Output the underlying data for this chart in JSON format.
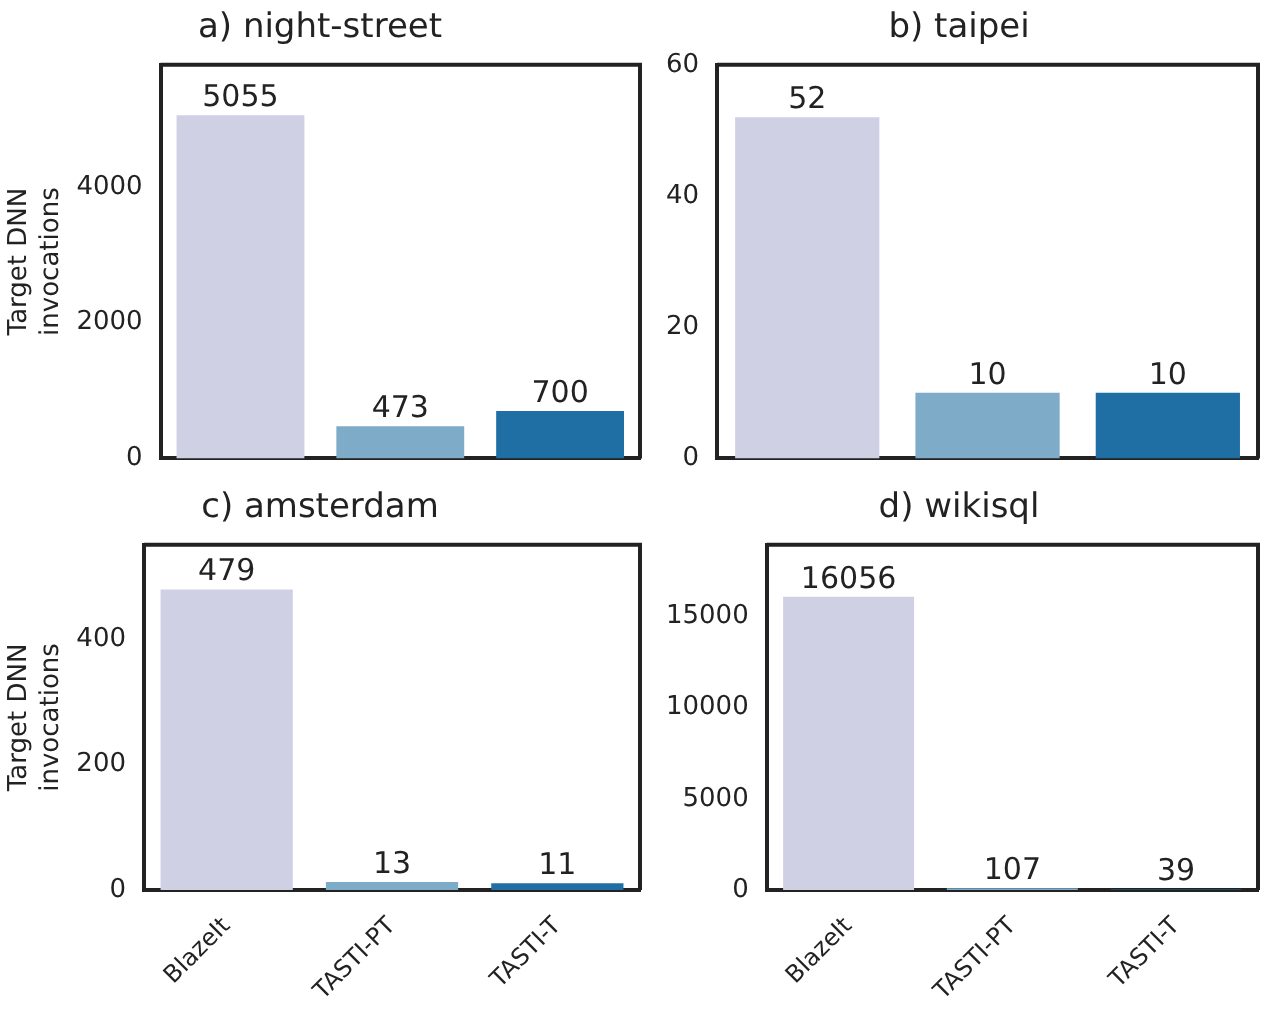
{
  "chart_data": [
    {
      "type": "bar",
      "title": "a) night-street",
      "ylabel": "Target DNN invocations",
      "categories": [
        null,
        null,
        null
      ],
      "values": [
        5055,
        473,
        700
      ],
      "colors": [
        "#cfd0e4",
        "#7eabc8",
        "#1f6fa5"
      ],
      "ylim": [
        0,
        5800
      ],
      "yticks": [
        0,
        2000,
        4000
      ],
      "data_labels": true,
      "grid": false,
      "legend": false,
      "tick_labels": "y"
    },
    {
      "type": "bar",
      "title": "b) taipei",
      "categories": [
        null,
        null,
        null
      ],
      "values": [
        52,
        10,
        10
      ],
      "colors": [
        "#cfd0e4",
        "#7eabc8",
        "#1f6fa5"
      ],
      "ylim": [
        0,
        60
      ],
      "yticks": [
        0,
        20,
        40,
        60
      ],
      "data_labels": true,
      "grid": false,
      "legend": false,
      "tick_labels": "y"
    },
    {
      "type": "bar",
      "title": "c) amsterdam",
      "ylabel": "Target DNN invocations",
      "categories": [
        "BlazeIt",
        "TASTI-PT",
        "TASTI-T"
      ],
      "values": [
        479,
        13,
        11
      ],
      "colors": [
        "#cfd0e4",
        "#7eabc8",
        "#1f6fa5"
      ],
      "ylim": [
        0,
        550
      ],
      "yticks": [
        0,
        200,
        400
      ],
      "data_labels": true,
      "grid": false,
      "legend": false
    },
    {
      "type": "bar",
      "title": "d) wikisql",
      "categories": [
        "BlazeIt",
        "TASTI-PT",
        "TASTI-T"
      ],
      "values": [
        16056,
        107,
        39
      ],
      "colors": [
        "#cfd0e4",
        "#7eabc8",
        "#1f6fa5"
      ],
      "ylim": [
        0,
        18900
      ],
      "yticks": [
        0,
        5000,
        10000,
        15000
      ],
      "data_labels": true,
      "grid": false,
      "legend": false
    }
  ]
}
